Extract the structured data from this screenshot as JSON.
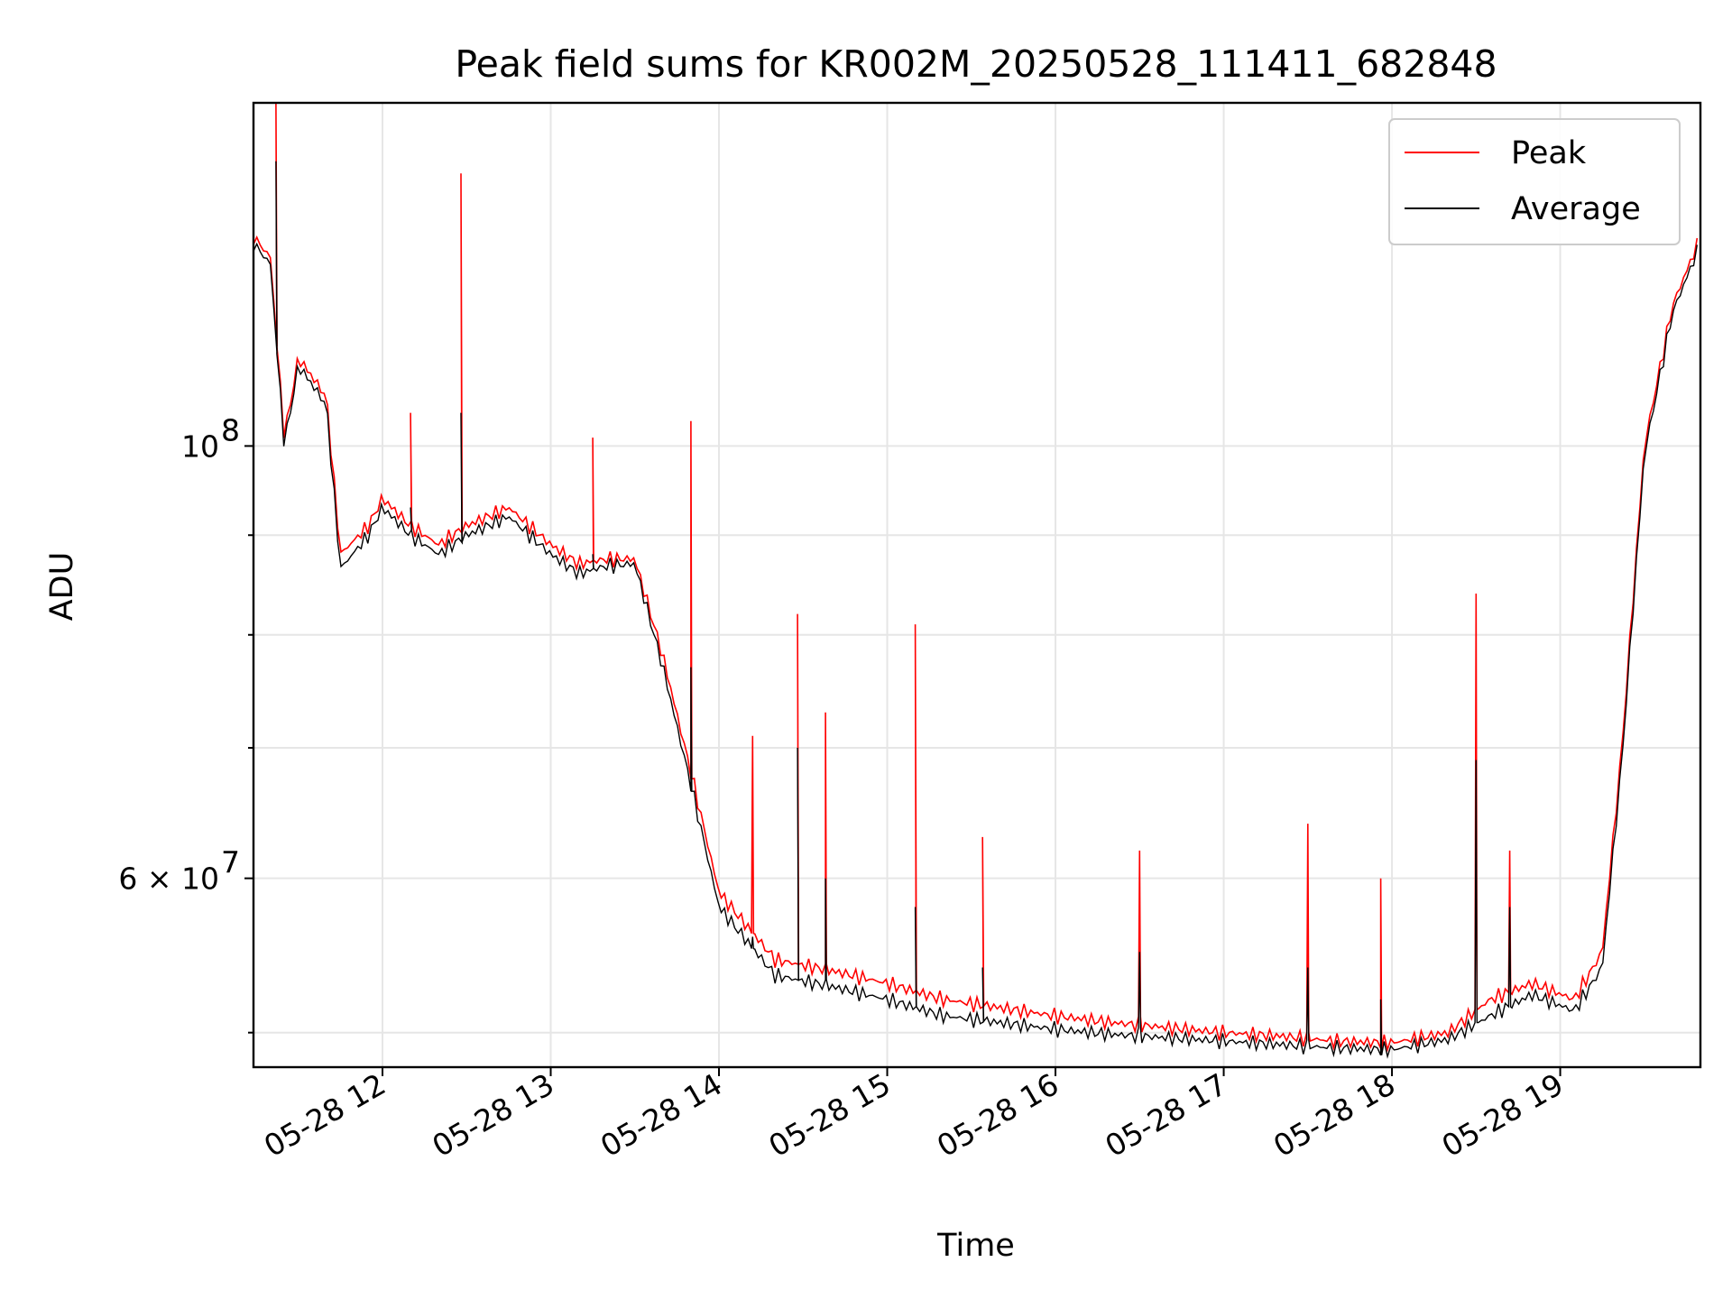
{
  "chart_data": {
    "type": "line",
    "title": "Peak field sums for KR002M_20250528_111411_682848",
    "xlabel": "Time",
    "ylabel": "ADU",
    "x_ticks": [
      "05-28 12",
      "05-28 13",
      "05-28 14",
      "05-28 15",
      "05-28 16",
      "05-28 17",
      "05-28 18",
      "05-28 19"
    ],
    "y_tick_labels": {
      "major_1e8": "10",
      "major_1e8_exp": "8",
      "mid_6e7": "6 × 10",
      "mid_6e7_exp": "7"
    },
    "y_scale": "log",
    "xlim": [
      "2025-05-28 11:14",
      "2025-05-28 19:50"
    ],
    "ylim": [
      48000000,
      150000000
    ],
    "grid": true,
    "legend_position": "top-right",
    "x": [
      "11:14",
      "11:20",
      "11:25",
      "11:30",
      "11:40",
      "11:45",
      "11:55",
      "12:00",
      "12:10",
      "12:20",
      "12:30",
      "12:45",
      "13:00",
      "13:10",
      "13:20",
      "13:30",
      "13:40",
      "13:50",
      "14:00",
      "14:20",
      "14:40",
      "15:00",
      "15:20",
      "15:40",
      "16:00",
      "16:20",
      "16:40",
      "17:00",
      "17:20",
      "17:40",
      "18:00",
      "18:20",
      "18:35",
      "18:50",
      "19:05",
      "19:15",
      "19:22",
      "19:30",
      "19:40",
      "19:50"
    ],
    "series": [
      {
        "name": "Peak",
        "color": "#ff0000",
        "values": [
          128000000,
          125000000,
          101000000,
          111000000,
          106000000,
          88000000,
          91000000,
          94000000,
          91000000,
          89000000,
          91000000,
          93000000,
          89000000,
          87000000,
          87500000,
          87500000,
          78000000,
          68000000,
          59000000,
          54500000,
          53800000,
          53000000,
          52000000,
          51500000,
          51000000,
          50600000,
          50300000,
          50000000,
          49800000,
          49500000,
          49400000,
          50000000,
          52000000,
          53000000,
          52000000,
          55000000,
          70000000,
          100000000,
          118000000,
          128000000
        ]
      },
      {
        "name": "Average",
        "color": "#000000",
        "values": [
          127000000,
          124000000,
          100000000,
          110000000,
          105000000,
          86500000,
          90000000,
          93000000,
          90000000,
          88000000,
          90000000,
          92000000,
          88000000,
          86000000,
          86800000,
          87000000,
          77000000,
          67000000,
          58000000,
          53500000,
          52800000,
          52000000,
          51000000,
          50600000,
          50200000,
          49900000,
          49700000,
          49500000,
          49300000,
          49100000,
          49000000,
          49600000,
          51000000,
          52300000,
          51300000,
          54000000,
          69000000,
          99000000,
          117000000,
          127000000
        ]
      }
    ],
    "spikes": [
      {
        "x": "11:22",
        "peak": 150000000,
        "average": 140000000
      },
      {
        "x": "12:28",
        "peak": 138000000,
        "average": 104000000
      },
      {
        "x": "12:10",
        "peak": 104000000,
        "average": 93000000
      },
      {
        "x": "13:15",
        "peak": 101000000,
        "average": 88000000
      },
      {
        "x": "13:50",
        "peak": 103000000,
        "average": 77000000
      },
      {
        "x": "14:12",
        "peak": 71000000,
        "average": 56000000
      },
      {
        "x": "14:28",
        "peak": 82000000,
        "average": 70000000
      },
      {
        "x": "14:38",
        "peak": 73000000,
        "average": 60000000
      },
      {
        "x": "15:10",
        "peak": 81000000,
        "average": 58000000
      },
      {
        "x": "15:34",
        "peak": 63000000,
        "average": 54000000
      },
      {
        "x": "16:30",
        "peak": 62000000,
        "average": 55000000
      },
      {
        "x": "17:30",
        "peak": 64000000,
        "average": 54000000
      },
      {
        "x": "17:56",
        "peak": 60000000,
        "average": 52000000
      },
      {
        "x": "18:30",
        "peak": 84000000,
        "average": 69000000
      },
      {
        "x": "18:42",
        "peak": 62000000,
        "average": 58000000
      }
    ]
  }
}
